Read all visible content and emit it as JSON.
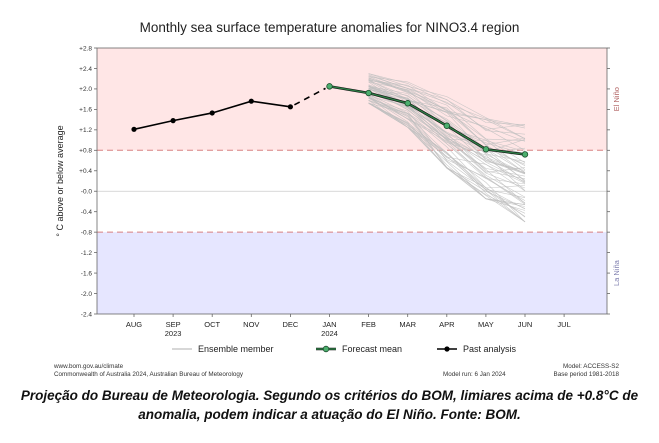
{
  "chart_data": {
    "type": "line",
    "title": "Monthly sea surface temperature anomalies for NINO3.4 region",
    "ylabel": "° C above or below average",
    "ylim": [
      -2.4,
      2.8
    ],
    "yticks": [
      {
        "value": 2.8,
        "label": "+2.8"
      },
      {
        "value": 2.4,
        "label": "+2.4"
      },
      {
        "value": 2.0,
        "label": "+2.0"
      },
      {
        "value": 1.6,
        "label": "+1.6"
      },
      {
        "value": 1.2,
        "label": "+1.2"
      },
      {
        "value": 0.8,
        "label": "+0.8"
      },
      {
        "value": 0.4,
        "label": "+0.4"
      },
      {
        "value": 0.0,
        "label": "-0.0"
      },
      {
        "value": -0.4,
        "label": "-0.4"
      },
      {
        "value": -0.8,
        "label": "-0.8"
      },
      {
        "value": -1.2,
        "label": "-1.2"
      },
      {
        "value": -1.6,
        "label": "-1.6"
      },
      {
        "value": -2.0,
        "label": "-2.0"
      },
      {
        "value": -2.4,
        "label": "-2.4"
      }
    ],
    "categories": [
      "AUG",
      "SEP",
      "OCT",
      "NOV",
      "DEC",
      "JAN",
      "FEB",
      "MAR",
      "APR",
      "MAY",
      "JUN",
      "JUL"
    ],
    "year_labels": [
      {
        "category": "SEP",
        "label": "2023"
      },
      {
        "category": "JAN",
        "label": "2024"
      }
    ],
    "thresholds": [
      {
        "value": 0.8,
        "label": "El Niño",
        "color": "#ffe6e6"
      },
      {
        "value": -0.8,
        "label": "La Niña",
        "color": "#e6e6ff"
      }
    ],
    "series": [
      {
        "name": "Past analysis",
        "color": "#000000",
        "points": [
          [
            "AUG",
            1.21
          ],
          [
            "SEP",
            1.38
          ],
          [
            "OCT",
            1.53
          ],
          [
            "NOV",
            1.76
          ],
          [
            "DEC",
            1.65
          ]
        ]
      },
      {
        "name": "Forecast mean",
        "color": "#2e7d46",
        "points": [
          [
            "JAN",
            2.05
          ],
          [
            "FEB",
            1.92
          ],
          [
            "MAR",
            1.72
          ],
          [
            "APR",
            1.28
          ],
          [
            "MAY",
            0.82
          ],
          [
            "JUN",
            0.72
          ]
        ]
      },
      {
        "name": "Ensemble member",
        "color": "#bfbfbf",
        "spread_start": "FEB",
        "spread_end": "JUN",
        "low": [
          1.72,
          1.25,
          0.45,
          -0.15,
          -0.6
        ],
        "high": [
          2.3,
          2.2,
          1.85,
          1.45,
          1.3
        ]
      }
    ],
    "legend_position": "bottom"
  },
  "footer": {
    "left_line1": "www.bom.gov.au/climate",
    "left_line2": "Commonwealth of Australia 2024, Australian Bureau of Meteorology",
    "model_run": "Model run: 6 Jan 2024",
    "right_line1": "Model: ACCESS-S2",
    "right_line2": "Base period 1981-2018"
  },
  "caption": "Projeção do Bureau de Meteorologia. Segundo os critérios do BOM, limiares acima de +0.8°C de anomalia, podem indicar a atuação do El Niño. Fonte: BOM."
}
